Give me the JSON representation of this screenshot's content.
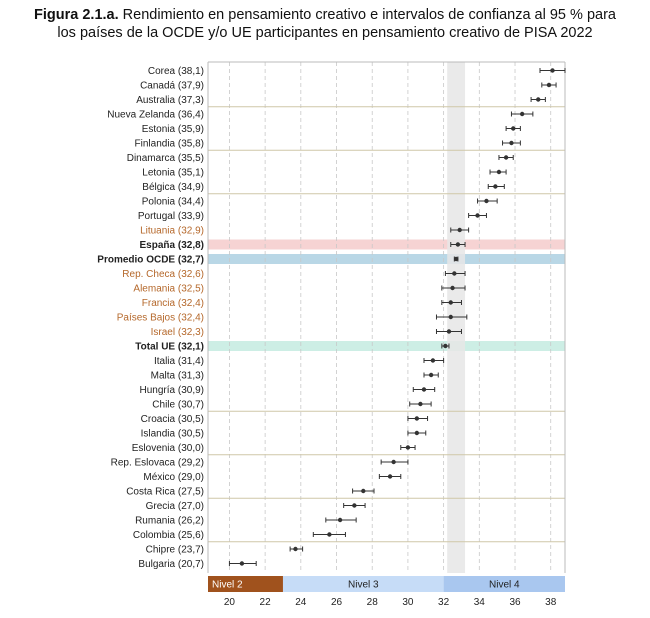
{
  "title": {
    "figure": "Figura 2.1.a.",
    "line1": "Rendimiento en pensamiento creativo e intervalos de confianza al 95 % para",
    "line2": "los países de la OCDE y/o UE participantes en pensamiento creativo de PISA 2022"
  },
  "colors": {
    "highlight_espana": "#f6d3d3",
    "highlight_ocde": "#b9d7e6",
    "highlight_ue": "#cdeee5",
    "orange_label": "#b5682b",
    "nivel2": "#a0521d",
    "nivel3": "#c6dcf7",
    "nivel4": "#a9c7ef",
    "mean_band": "#e6e6e6",
    "point": "#333333"
  },
  "chart_data": {
    "type": "scatter",
    "subtype": "dot-with-confidence-interval",
    "xlim": [
      18.8,
      38.8
    ],
    "x_ticks": [
      20,
      22,
      24,
      26,
      28,
      30,
      32,
      34,
      36,
      38
    ],
    "mean_band": [
      32.2,
      33.2
    ],
    "grid": "vertical dashed",
    "levels": [
      {
        "label": "Nivel 2",
        "from": 18.8,
        "to": 23.0
      },
      {
        "label": "Nivel 3",
        "from": 23.0,
        "to": 32.0
      },
      {
        "label": "Nivel 4",
        "from": 32.0,
        "to": 38.8
      }
    ],
    "rows": [
      {
        "label": "Corea (38,1)",
        "value": 38.1,
        "low": 37.4,
        "high": 38.8,
        "style": "normal",
        "separator_after": false
      },
      {
        "label": "Canadá (37,9)",
        "value": 37.9,
        "low": 37.5,
        "high": 38.3,
        "style": "normal",
        "separator_after": false
      },
      {
        "label": "Australia (37,3)",
        "value": 37.3,
        "low": 36.9,
        "high": 37.7,
        "style": "normal",
        "separator_after": true
      },
      {
        "label": "Nueva Zelanda (36,4)",
        "value": 36.4,
        "low": 35.8,
        "high": 37.0,
        "style": "normal",
        "separator_after": false
      },
      {
        "label": "Estonia (35,9)",
        "value": 35.9,
        "low": 35.5,
        "high": 36.3,
        "style": "normal",
        "separator_after": false
      },
      {
        "label": "Finlandia (35,8)",
        "value": 35.8,
        "low": 35.3,
        "high": 36.3,
        "style": "normal",
        "separator_after": true
      },
      {
        "label": "Dinamarca (35,5)",
        "value": 35.5,
        "low": 35.1,
        "high": 35.9,
        "style": "normal",
        "separator_after": false
      },
      {
        "label": "Letonia (35,1)",
        "value": 35.1,
        "low": 34.6,
        "high": 35.5,
        "style": "normal",
        "separator_after": false
      },
      {
        "label": "Bélgica (34,9)",
        "value": 34.9,
        "low": 34.5,
        "high": 35.4,
        "style": "normal",
        "separator_after": true
      },
      {
        "label": "Polonia (34,4)",
        "value": 34.4,
        "low": 33.9,
        "high": 35.0,
        "style": "normal",
        "separator_after": false
      },
      {
        "label": "Portugal (33,9)",
        "value": 33.9,
        "low": 33.4,
        "high": 34.4,
        "style": "normal",
        "separator_after": false
      },
      {
        "label": "Lituania (32,9)",
        "value": 32.9,
        "low": 32.4,
        "high": 33.4,
        "style": "orange",
        "separator_after": false
      },
      {
        "label": "España (32,8)",
        "value": 32.8,
        "low": 32.4,
        "high": 33.2,
        "style": "bold",
        "highlight": "espana",
        "separator_after": false
      },
      {
        "label": "Promedio OCDE (32,7)",
        "value": 32.7,
        "low": 32.6,
        "high": 32.8,
        "style": "bold",
        "highlight": "ocde",
        "separator_after": false
      },
      {
        "label": "Rep. Checa (32,6)",
        "value": 32.6,
        "low": 32.1,
        "high": 33.2,
        "style": "orange",
        "separator_after": false
      },
      {
        "label": "Alemania (32,5)",
        "value": 32.5,
        "low": 31.9,
        "high": 33.2,
        "style": "orange",
        "separator_after": false
      },
      {
        "label": "Francia (32,4)",
        "value": 32.4,
        "low": 31.9,
        "high": 33.0,
        "style": "orange",
        "separator_after": false
      },
      {
        "label": "Países Bajos (32,4)",
        "value": 32.4,
        "low": 31.6,
        "high": 33.3,
        "style": "orange",
        "separator_after": false
      },
      {
        "label": "Israel (32,3)",
        "value": 32.3,
        "low": 31.6,
        "high": 33.0,
        "style": "orange",
        "separator_after": false
      },
      {
        "label": "Total UE (32,1)",
        "value": 32.1,
        "low": 31.9,
        "high": 32.3,
        "style": "bold",
        "highlight": "ue",
        "separator_after": false
      },
      {
        "label": "Italia (31,4)",
        "value": 31.4,
        "low": 30.9,
        "high": 32.0,
        "style": "normal",
        "separator_after": false
      },
      {
        "label": "Malta (31,3)",
        "value": 31.3,
        "low": 30.9,
        "high": 31.7,
        "style": "normal",
        "separator_after": false
      },
      {
        "label": "Hungría (30,9)",
        "value": 30.9,
        "low": 30.3,
        "high": 31.5,
        "style": "normal",
        "separator_after": false
      },
      {
        "label": "Chile (30,7)",
        "value": 30.7,
        "low": 30.1,
        "high": 31.3,
        "style": "normal",
        "separator_after": true
      },
      {
        "label": "Croacia (30,5)",
        "value": 30.5,
        "low": 30.0,
        "high": 31.1,
        "style": "normal",
        "separator_after": false
      },
      {
        "label": "Islandia (30,5)",
        "value": 30.5,
        "low": 30.0,
        "high": 31.0,
        "style": "normal",
        "separator_after": false
      },
      {
        "label": "Eslovenia (30,0)",
        "value": 30.0,
        "low": 29.6,
        "high": 30.4,
        "style": "normal",
        "separator_after": true
      },
      {
        "label": "Rep. Eslovaca (29,2)",
        "value": 29.2,
        "low": 28.5,
        "high": 30.0,
        "style": "normal",
        "separator_after": false
      },
      {
        "label": "México (29,0)",
        "value": 29.0,
        "low": 28.4,
        "high": 29.6,
        "style": "normal",
        "separator_after": false
      },
      {
        "label": "Costa Rica (27,5)",
        "value": 27.5,
        "low": 26.9,
        "high": 28.1,
        "style": "normal",
        "separator_after": true
      },
      {
        "label": "Grecia (27,0)",
        "value": 27.0,
        "low": 26.4,
        "high": 27.6,
        "style": "normal",
        "separator_after": false
      },
      {
        "label": "Rumania (26,2)",
        "value": 26.2,
        "low": 25.4,
        "high": 27.1,
        "style": "normal",
        "separator_after": false
      },
      {
        "label": "Colombia (25,6)",
        "value": 25.6,
        "low": 24.7,
        "high": 26.5,
        "style": "normal",
        "separator_after": true
      },
      {
        "label": "Chipre (23,7)",
        "value": 23.7,
        "low": 23.4,
        "high": 24.1,
        "style": "normal",
        "separator_after": false
      },
      {
        "label": "Bulgaria (20,7)",
        "value": 20.7,
        "low": 20.0,
        "high": 21.5,
        "style": "normal",
        "separator_after": false
      }
    ]
  }
}
